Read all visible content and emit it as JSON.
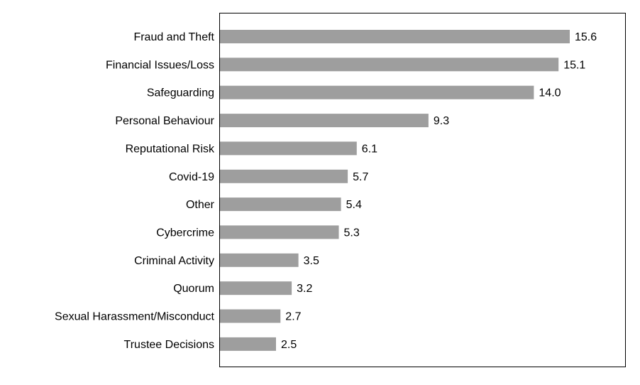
{
  "chart_data": {
    "type": "bar",
    "orientation": "horizontal",
    "categories": [
      "Fraud and Theft",
      "Financial Issues/Loss",
      "Safeguarding",
      "Personal Behaviour",
      "Reputational Risk",
      "Covid-19",
      "Other",
      "Cybercrime",
      "Criminal Activity",
      "Quorum",
      "Sexual Harassment/Misconduct",
      "Trustee Decisions"
    ],
    "values": [
      15.6,
      15.1,
      14.0,
      9.3,
      6.1,
      5.7,
      5.4,
      5.3,
      3.5,
      3.2,
      2.7,
      2.5
    ],
    "value_labels": [
      "15.6",
      "15.1",
      "14.0",
      "9.3",
      "6.1",
      "5.7",
      "5.4",
      "5.3",
      "3.5",
      "3.2",
      "2.7",
      "2.5"
    ],
    "title": "",
    "xlabel": "",
    "ylabel": "",
    "xlim": [
      0,
      17.5
    ],
    "grid": false,
    "legend": "none",
    "bar_color": "#9e9e9e",
    "frame_color": "#000000"
  }
}
